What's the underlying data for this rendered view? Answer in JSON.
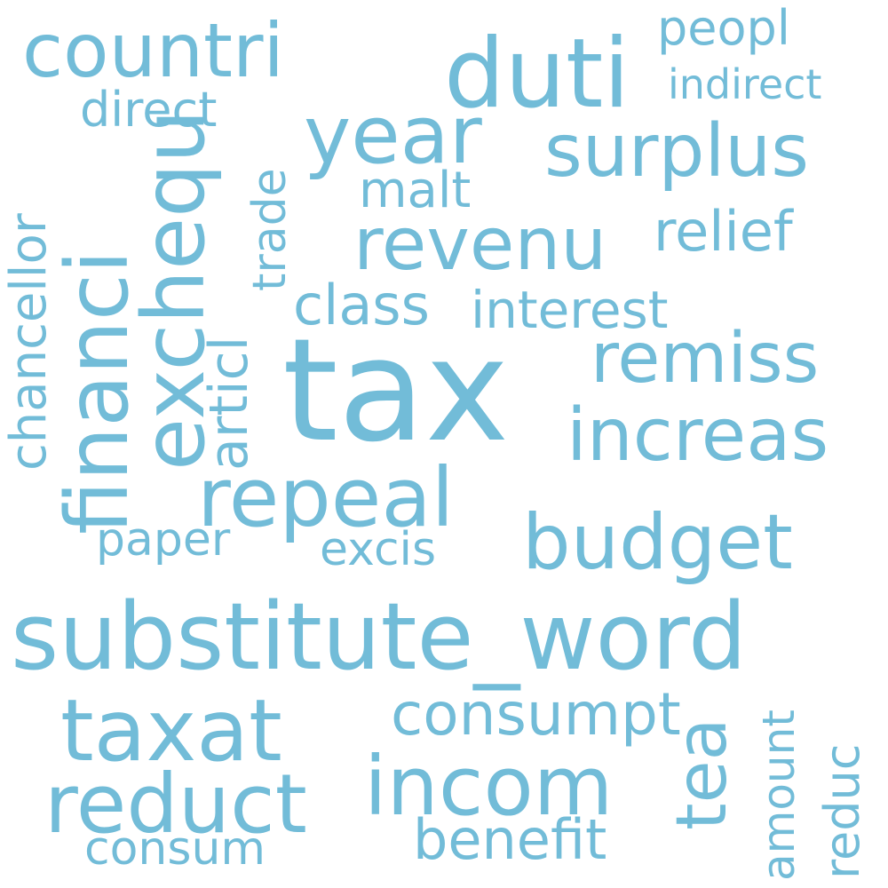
{
  "word_cloud": {
    "color": "#72bcd8",
    "background": "#ffffff",
    "words": [
      {
        "name": "tax",
        "text": "tax"
      },
      {
        "name": "substitute-word",
        "text": "substitute_word"
      },
      {
        "name": "duti",
        "text": "duti"
      },
      {
        "name": "countri",
        "text": "countri"
      },
      {
        "name": "year",
        "text": "year"
      },
      {
        "name": "surplus",
        "text": "surplus"
      },
      {
        "name": "revenu",
        "text": "revenu"
      },
      {
        "name": "remiss",
        "text": "remiss"
      },
      {
        "name": "increas",
        "text": "increas"
      },
      {
        "name": "repeal",
        "text": "repeal"
      },
      {
        "name": "budget",
        "text": "budget"
      },
      {
        "name": "taxat",
        "text": "taxat"
      },
      {
        "name": "reduct",
        "text": "reduct"
      },
      {
        "name": "incom",
        "text": "incom"
      },
      {
        "name": "consumpt",
        "text": "consumpt"
      },
      {
        "name": "benefit",
        "text": "benefit"
      },
      {
        "name": "consum",
        "text": "consum"
      },
      {
        "name": "paper",
        "text": "paper"
      },
      {
        "name": "excis",
        "text": "excis"
      },
      {
        "name": "class",
        "text": "class"
      },
      {
        "name": "interest",
        "text": "interest"
      },
      {
        "name": "relief",
        "text": "relief"
      },
      {
        "name": "malt",
        "text": "malt"
      },
      {
        "name": "direct",
        "text": "direct"
      },
      {
        "name": "indirect",
        "text": "indirect"
      },
      {
        "name": "peopl",
        "text": "peopl"
      },
      {
        "name": "financi",
        "text": "financi"
      },
      {
        "name": "exchequ",
        "text": "exchequ"
      },
      {
        "name": "chancellor",
        "text": "chancellor"
      },
      {
        "name": "articl",
        "text": "articl"
      },
      {
        "name": "trade",
        "text": "trade"
      },
      {
        "name": "tea",
        "text": "tea"
      },
      {
        "name": "amount",
        "text": "amount"
      },
      {
        "name": "reduc",
        "text": "reduc"
      }
    ]
  }
}
